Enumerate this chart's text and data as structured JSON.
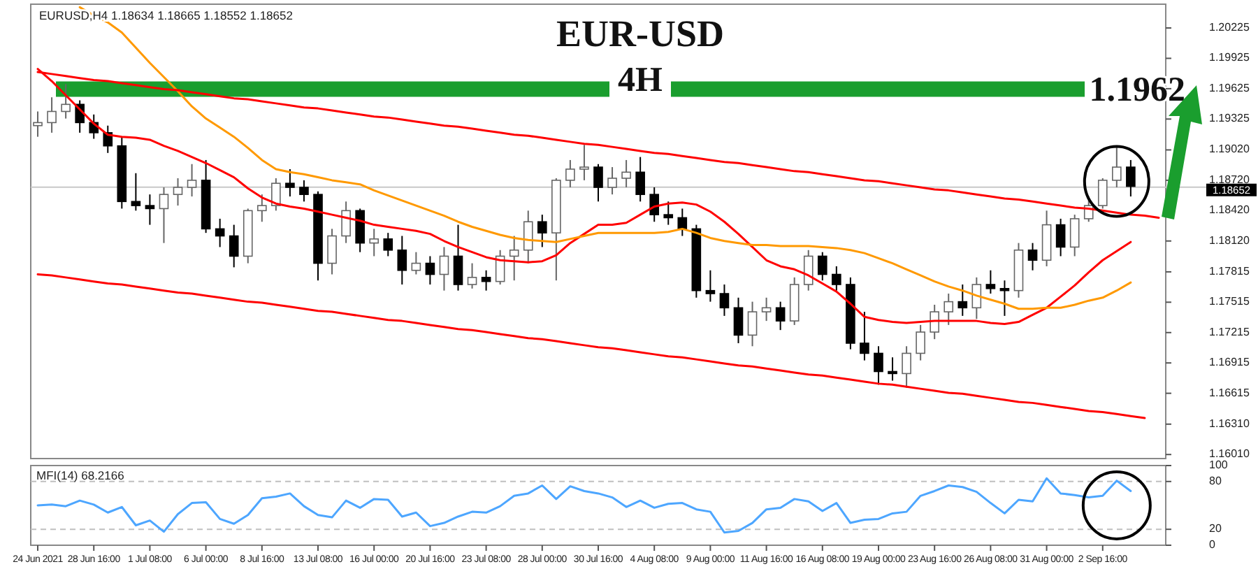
{
  "chart_data": [
    {
      "type": "candlestick",
      "title": "EUR-USD",
      "subtitle": "4H",
      "annotations": [
        "EURUSD,H4 1.18634 1.18665 1.18552 1.18652"
      ],
      "categories": [
        null,
        null,
        null,
        null,
        null,
        null,
        null,
        null,
        null,
        null,
        null,
        null,
        null,
        null,
        null,
        null,
        null,
        null,
        null,
        null,
        null,
        null,
        null,
        null,
        null,
        null,
        null,
        null,
        null,
        null,
        null,
        null,
        null,
        null,
        null,
        null,
        null,
        null,
        null,
        null,
        null,
        null,
        null,
        null,
        null,
        null,
        null,
        null,
        null,
        null,
        null,
        null,
        null,
        null,
        null,
        null,
        null,
        null,
        null,
        null,
        null,
        null,
        null,
        null,
        null,
        null,
        null,
        null,
        null,
        null,
        null,
        null,
        null,
        null,
        null,
        null,
        null,
        null,
        null,
        null,
        null
      ],
      "ohlc": [
        [
          1.1926,
          1.194,
          1.1915,
          1.1929
        ],
        [
          1.1929,
          1.1954,
          1.1919,
          1.194
        ],
        [
          1.194,
          1.1967,
          1.1933,
          1.1947
        ],
        [
          1.1947,
          1.1951,
          1.1919,
          1.1929
        ],
        [
          1.1929,
          1.1937,
          1.1913,
          1.1919
        ],
        [
          1.1919,
          1.1926,
          1.1899,
          1.1906
        ],
        [
          1.1906,
          1.1915,
          1.1844,
          1.1851
        ],
        [
          1.1851,
          1.1879,
          1.1842,
          1.1847
        ],
        [
          1.1847,
          1.1858,
          1.1828,
          1.1844
        ],
        [
          1.1844,
          1.1865,
          1.181,
          1.1858
        ],
        [
          1.1858,
          1.1874,
          1.1847,
          1.1865
        ],
        [
          1.1865,
          1.1888,
          1.1856,
          1.1872
        ],
        [
          1.1872,
          1.1892,
          1.182,
          1.1824
        ],
        [
          1.1824,
          1.1834,
          1.1806,
          1.1817
        ],
        [
          1.1817,
          1.1828,
          1.1786,
          1.1797
        ],
        [
          1.1797,
          1.1844,
          1.179,
          1.1842
        ],
        [
          1.1842,
          1.1858,
          1.1831,
          1.1847
        ],
        [
          1.1847,
          1.1874,
          1.1842,
          1.1869
        ],
        [
          1.1869,
          1.1883,
          1.1856,
          1.1865
        ],
        [
          1.1865,
          1.1872,
          1.1851,
          1.1858
        ],
        [
          1.1858,
          1.1861,
          1.1773,
          1.179
        ],
        [
          1.179,
          1.1824,
          1.1779,
          1.1817
        ],
        [
          1.1817,
          1.1851,
          1.181,
          1.1842
        ],
        [
          1.1842,
          1.1844,
          1.1801,
          1.181
        ],
        [
          1.181,
          1.1824,
          1.1797,
          1.1814
        ],
        [
          1.1814,
          1.182,
          1.1797,
          1.1803
        ],
        [
          1.1803,
          1.1817,
          1.1769,
          1.1783
        ],
        [
          1.1783,
          1.1801,
          1.1779,
          1.179
        ],
        [
          1.179,
          1.1797,
          1.1769,
          1.1779
        ],
        [
          1.1779,
          1.1806,
          1.1763,
          1.1797
        ],
        [
          1.1797,
          1.1828,
          1.1763,
          1.1769
        ],
        [
          1.1769,
          1.179,
          1.1765,
          1.1776
        ],
        [
          1.1776,
          1.1783,
          1.1763,
          1.1772
        ],
        [
          1.1772,
          1.1803,
          1.1769,
          1.1797
        ],
        [
          1.1797,
          1.1817,
          1.1773,
          1.1803
        ],
        [
          1.1803,
          1.1842,
          1.179,
          1.1831
        ],
        [
          1.1831,
          1.1838,
          1.1806,
          1.182
        ],
        [
          1.182,
          1.1874,
          1.1773,
          1.1872
        ],
        [
          1.1872,
          1.1892,
          1.1865,
          1.1883
        ],
        [
          1.1883,
          1.1907,
          1.1872,
          1.1885
        ],
        [
          1.1885,
          1.1888,
          1.1851,
          1.1865
        ],
        [
          1.1865,
          1.1885,
          1.1858,
          1.1874
        ],
        [
          1.1874,
          1.1892,
          1.1865,
          1.188
        ],
        [
          1.188,
          1.1895,
          1.1851,
          1.1858
        ],
        [
          1.1858,
          1.1865,
          1.1831,
          1.1838
        ],
        [
          1.1838,
          1.1851,
          1.1828,
          1.1835
        ],
        [
          1.1835,
          1.1844,
          1.1817,
          1.1824
        ],
        [
          1.1824,
          1.1828,
          1.1756,
          1.1763
        ],
        [
          1.1763,
          1.1783,
          1.1752,
          1.176
        ],
        [
          1.176,
          1.1769,
          1.1738,
          1.1746
        ],
        [
          1.1746,
          1.1756,
          1.1711,
          1.1719
        ],
        [
          1.1719,
          1.1752,
          1.1708,
          1.1742
        ],
        [
          1.1742,
          1.1756,
          1.1733,
          1.1746
        ],
        [
          1.1746,
          1.1752,
          1.1724,
          1.1733
        ],
        [
          1.1733,
          1.1776,
          1.1729,
          1.1769
        ],
        [
          1.1769,
          1.1803,
          1.1763,
          1.1797
        ],
        [
          1.1797,
          1.1801,
          1.1773,
          1.1779
        ],
        [
          1.1779,
          1.1787,
          1.1763,
          1.1769
        ],
        [
          1.1769,
          1.1776,
          1.1705,
          1.1711
        ],
        [
          1.1711,
          1.1742,
          1.1694,
          1.1701
        ],
        [
          1.1701,
          1.1708,
          1.167,
          1.1683
        ],
        [
          1.1683,
          1.1697,
          1.1674,
          1.1681
        ],
        [
          1.1681,
          1.1708,
          1.1667,
          1.1701
        ],
        [
          1.1701,
          1.1729,
          1.1694,
          1.1722
        ],
        [
          1.1722,
          1.1749,
          1.1715,
          1.1742
        ],
        [
          1.1742,
          1.176,
          1.1729,
          1.1752
        ],
        [
          1.1752,
          1.1769,
          1.1738,
          1.1746
        ],
        [
          1.1746,
          1.1776,
          1.1735,
          1.1769
        ],
        [
          1.1769,
          1.1783,
          1.176,
          1.1765
        ],
        [
          1.1765,
          1.1773,
          1.1738,
          1.1763
        ],
        [
          1.1763,
          1.181,
          1.1756,
          1.1803
        ],
        [
          1.1803,
          1.181,
          1.1783,
          1.1793
        ],
        [
          1.1793,
          1.1842,
          1.1787,
          1.1828
        ],
        [
          1.1828,
          1.1834,
          1.1797,
          1.1806
        ],
        [
          1.1806,
          1.1838,
          1.1797,
          1.1834
        ],
        [
          1.1834,
          1.1856,
          1.1831,
          1.1847
        ],
        [
          1.1847,
          1.1874,
          1.1844,
          1.1872
        ],
        [
          1.1872,
          1.1906,
          1.1865,
          1.1885
        ],
        [
          1.1885,
          1.1892,
          1.1856,
          1.1866
        ],
        null,
        null
      ],
      "series": [
        {
          "type": "line",
          "color": "#ff0000",
          "values": [
            1.1982,
            1.197,
            1.1956,
            1.1942,
            1.1928,
            1.1917,
            1.1915,
            1.1914,
            1.1912,
            1.1906,
            1.1901,
            1.1895,
            1.1889,
            1.1882,
            1.1875,
            1.1864,
            1.1855,
            1.1849,
            1.1846,
            1.1844,
            1.1841,
            1.1838,
            1.1835,
            1.1832,
            1.1828,
            1.1826,
            1.1824,
            1.1822,
            1.1819,
            1.1812,
            1.1806,
            1.1801,
            1.1796,
            1.1793,
            1.1792,
            1.1791,
            1.1792,
            1.1798,
            1.181,
            1.1819,
            1.1828,
            1.1828,
            1.183,
            1.1838,
            1.1846,
            1.1849,
            1.185,
            1.1848,
            1.1841,
            1.1831,
            1.1819,
            1.1806,
            1.1793,
            1.1787,
            1.1784,
            1.1778,
            1.177,
            1.1762,
            1.175,
            1.1737,
            1.1734,
            1.1732,
            1.1731,
            1.1732,
            1.1733,
            1.1733,
            1.1733,
            1.1733,
            1.1731,
            1.173,
            1.1732,
            1.1739,
            1.1746,
            1.1757,
            1.1768,
            1.1781,
            1.1793,
            1.1802,
            1.1811,
            null,
            null
          ]
        },
        {
          "type": "line",
          "color": "#ff9900",
          "values": [
            null,
            null,
            null,
            1.2043,
            1.2035,
            1.2028,
            1.2018,
            1.2003,
            1.1988,
            1.1974,
            1.196,
            1.1945,
            1.1933,
            1.1924,
            1.1915,
            1.1904,
            1.1892,
            1.1883,
            1.188,
            1.1878,
            1.1875,
            1.1872,
            1.187,
            1.1868,
            1.1862,
            1.1857,
            1.1852,
            1.1847,
            1.1842,
            1.1837,
            1.1831,
            1.1826,
            1.1822,
            1.1818,
            1.1815,
            1.1813,
            1.1812,
            1.1811,
            1.1814,
            1.1817,
            1.182,
            1.182,
            1.182,
            1.182,
            1.182,
            1.1821,
            1.1824,
            1.182,
            1.1815,
            1.1812,
            1.181,
            1.1808,
            1.1808,
            1.1807,
            1.1807,
            1.1807,
            1.1806,
            1.1805,
            1.1803,
            1.18,
            1.1795,
            1.179,
            1.1784,
            1.1778,
            1.1772,
            1.1767,
            1.1763,
            1.1758,
            1.1754,
            1.175,
            1.1745,
            1.1745,
            1.1746,
            1.1746,
            1.1749,
            1.1753,
            1.1756,
            1.1763,
            1.1771,
            null,
            null
          ]
        },
        {
          "type": "line",
          "color": "#ff0000",
          "values": [
            1.1979,
            1.1977,
            1.1975,
            1.1973,
            1.1971,
            1.197,
            1.1968,
            1.1966,
            1.1964,
            1.1962,
            1.1961,
            1.1959,
            1.1957,
            1.1955,
            1.1953,
            1.1952,
            1.195,
            1.1948,
            1.1946,
            1.1944,
            1.1943,
            1.1941,
            1.1939,
            1.1937,
            1.1935,
            1.1934,
            1.1932,
            1.193,
            1.1928,
            1.1926,
            1.1925,
            1.1923,
            1.1921,
            1.1919,
            1.1917,
            1.1916,
            1.1914,
            1.1912,
            1.191,
            1.1908,
            1.1907,
            1.1905,
            1.1903,
            1.1901,
            1.1899,
            1.1898,
            1.1896,
            1.1894,
            1.1892,
            1.189,
            1.1889,
            1.1887,
            1.1885,
            1.1883,
            1.1881,
            1.188,
            1.1878,
            1.1876,
            1.1874,
            1.1872,
            1.1871,
            1.1869,
            1.1867,
            1.1865,
            1.1863,
            1.1862,
            1.186,
            1.1858,
            1.1856,
            1.1854,
            1.1853,
            1.1851,
            1.1849,
            1.1847,
            1.1845,
            1.1844,
            1.1842,
            1.184,
            1.1838,
            1.1837,
            1.1835
          ]
        },
        {
          "type": "line",
          "color": "#ff0000",
          "values": [
            1.1779,
            1.1778,
            1.1776,
            1.1774,
            1.1772,
            1.177,
            1.1769,
            1.1767,
            1.1765,
            1.1763,
            1.1761,
            1.176,
            1.1758,
            1.1756,
            1.1754,
            1.1752,
            1.1751,
            1.1749,
            1.1747,
            1.1745,
            1.1743,
            1.1742,
            1.174,
            1.1738,
            1.1736,
            1.1734,
            1.1733,
            1.1731,
            1.1729,
            1.1727,
            1.1725,
            1.1724,
            1.1722,
            1.172,
            1.1718,
            1.1716,
            1.1715,
            1.1713,
            1.1711,
            1.1709,
            1.1707,
            1.1706,
            1.1704,
            1.1702,
            1.17,
            1.1698,
            1.1697,
            1.1695,
            1.1693,
            1.1691,
            1.1689,
            1.1688,
            1.1686,
            1.1684,
            1.1682,
            1.168,
            1.1679,
            1.1677,
            1.1675,
            1.1673,
            1.1671,
            1.167,
            1.1668,
            1.1666,
            1.1664,
            1.1662,
            1.1661,
            1.1659,
            1.1657,
            1.1655,
            1.1653,
            1.1652,
            1.165,
            1.1648,
            1.1646,
            1.1644,
            1.1643,
            1.1641,
            1.1639,
            1.1637,
            null
          ]
        }
      ],
      "ylim": [
        1.1597,
        1.2046
      ],
      "yticks": [
        {
          "value": 1.1601,
          "label": "1.16010"
        },
        {
          "value": 1.1631,
          "label": "1.16310"
        },
        1.16615,
        1.16915,
        1.17215,
        1.17515,
        1.17815,
        {
          "value": 1.1812,
          "label": "1.18120"
        },
        {
          "value": 1.1842,
          "label": "1.18420"
        },
        {
          "value": 1.1872,
          "label": "1.18720"
        },
        {
          "value": 1.1902,
          "label": "1.19020"
        },
        1.19325,
        1.19625,
        1.19925,
        1.20225
      ],
      "tick_labels": "y",
      "ref_lines": [
        {
          "axis": "y",
          "value": 1.1962,
          "label": "1.1962",
          "color": "#1a9e2e"
        },
        {
          "axis": "y",
          "value": 1.18652,
          "label": "1.18652",
          "color": "#c8c8c8"
        }
      ]
    },
    {
      "type": "line",
      "title": "MFI(14) 68.2166",
      "categories": [
        "24 Jun 2021",
        null,
        null,
        null,
        "28 Jun 16:00",
        null,
        null,
        null,
        "1 Jul 08:00",
        null,
        null,
        null,
        "6 Jul 00:00",
        null,
        null,
        null,
        "8 Jul 16:00",
        null,
        null,
        null,
        "13 Jul 08:00",
        null,
        null,
        null,
        "16 Jul 00:00",
        null,
        null,
        null,
        "20 Jul 16:00",
        null,
        null,
        null,
        "23 Jul 08:00",
        null,
        null,
        null,
        "28 Jul 00:00",
        null,
        null,
        null,
        "30 Jul 16:00",
        null,
        null,
        null,
        "4 Aug 08:00",
        null,
        null,
        null,
        "9 Aug 00:00",
        null,
        null,
        null,
        "11 Aug 16:00",
        null,
        null,
        null,
        "16 Aug 08:00",
        null,
        null,
        null,
        "19 Aug 00:00",
        null,
        null,
        null,
        "23 Aug 16:00",
        null,
        null,
        null,
        "26 Aug 08:00",
        null,
        null,
        null,
        "31 Aug 00:00",
        null,
        null,
        null,
        "2 Sep 16:00",
        null,
        null,
        null,
        null
      ],
      "series": [
        {
          "color": "#4da6ff",
          "values": [
            50,
            51,
            49,
            56,
            51,
            41,
            48,
            25,
            31,
            17,
            39,
            53,
            54,
            33,
            27,
            38,
            59,
            61,
            65,
            49,
            38,
            35,
            56,
            47,
            58,
            57,
            36,
            41,
            24,
            28,
            36,
            42,
            41,
            49,
            62,
            65,
            75,
            58,
            74,
            68,
            65,
            60,
            48,
            56,
            47,
            52,
            53,
            45,
            42,
            16,
            18,
            28,
            45,
            47,
            58,
            55,
            43,
            53,
            28,
            32,
            33,
            40,
            42,
            62,
            68,
            75,
            73,
            67,
            53,
            40,
            57,
            55,
            84,
            65,
            63,
            60,
            62,
            81,
            68,
            null,
            null
          ]
        }
      ],
      "ylim": [
        0,
        100
      ],
      "yticks": [
        0,
        20,
        80,
        100
      ],
      "ref_lines": [
        {
          "axis": "y",
          "value": 20,
          "color": "#c0c0c0",
          "line_style": "dashed"
        },
        {
          "axis": "y",
          "value": 80,
          "color": "#c0c0c0",
          "line_style": "dashed"
        }
      ]
    }
  ]
}
